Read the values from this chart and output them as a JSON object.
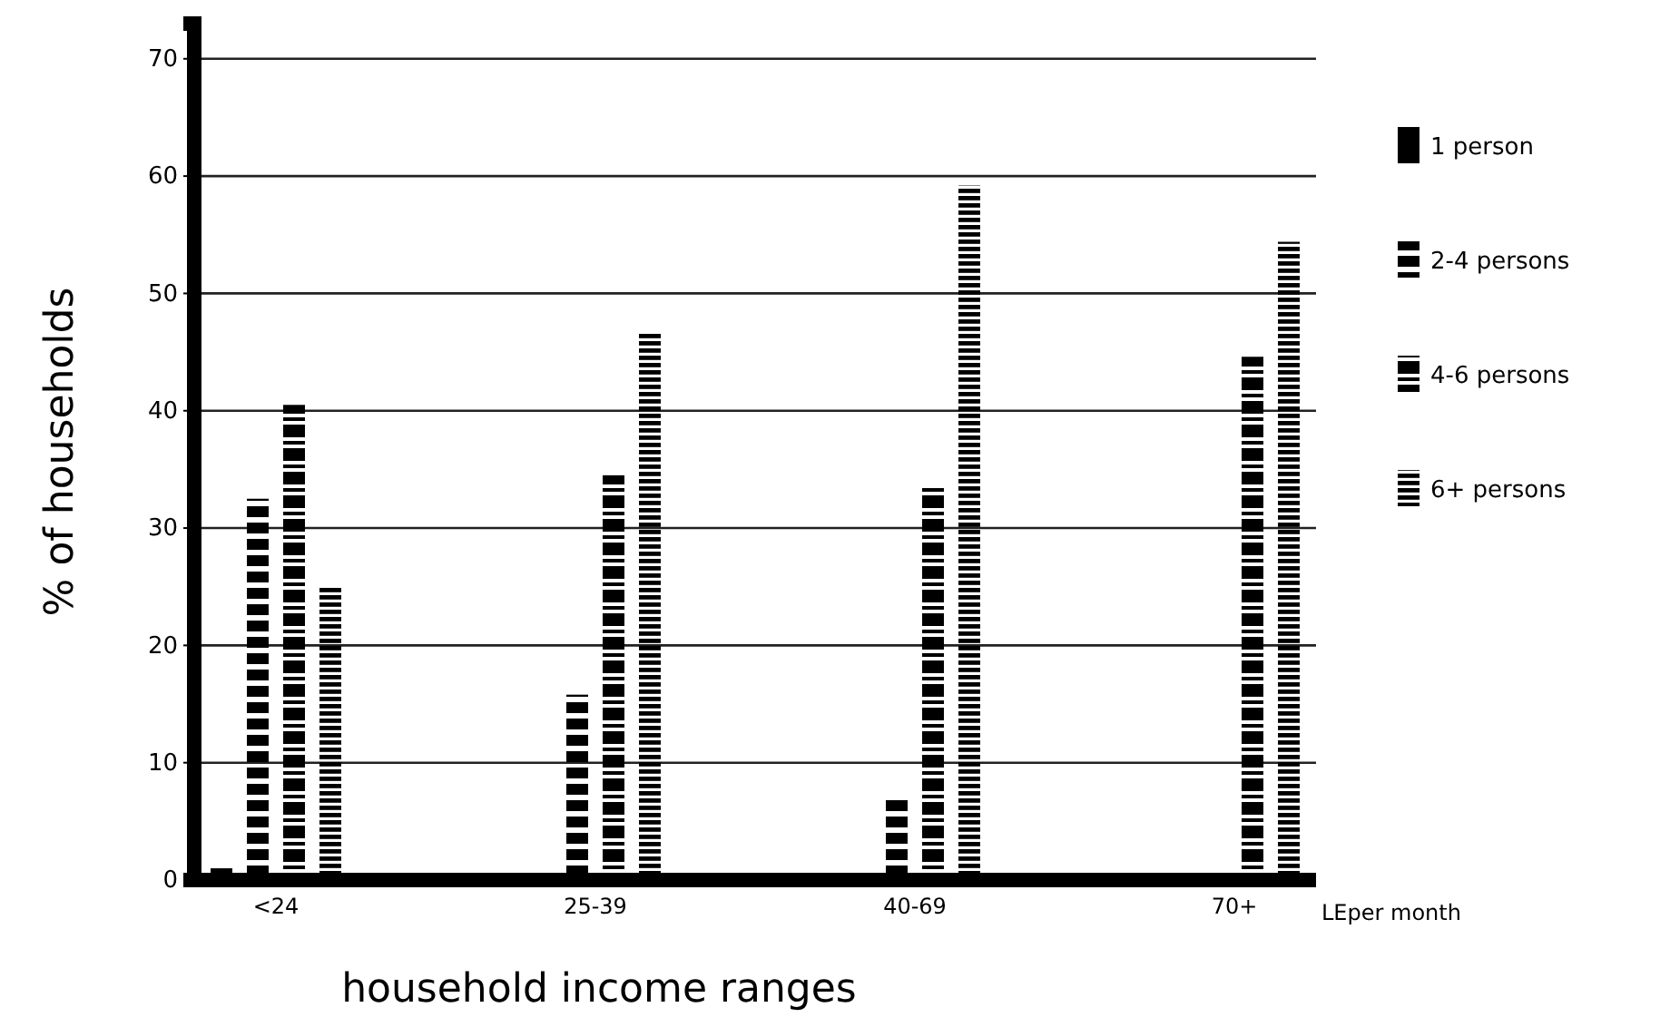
{
  "chart_data": {
    "type": "bar",
    "xlabel": "household income ranges",
    "ylabel": "% of households",
    "categories": [
      "<24",
      "25-39",
      "40-69",
      "70+"
    ],
    "series": [
      {
        "name": "1 person",
        "color": "#000000",
        "values": [
          1,
          null,
          null,
          null
        ]
      },
      {
        "name": "2-4 persons",
        "color": "#000000",
        "values": [
          32.5,
          15.8,
          6.9,
          null
        ]
      },
      {
        "name": "4-6 persons",
        "color": "#000000",
        "values": [
          40.5,
          34.5,
          33.5,
          44.6
        ]
      },
      {
        "name": "6+ persons",
        "color": "#000000",
        "values": [
          25,
          46.6,
          59.2,
          54.4
        ]
      }
    ],
    "ylim": [
      0,
      73
    ],
    "yticks": [
      0,
      10,
      20,
      30,
      40,
      50,
      60,
      70
    ],
    "grid": "y",
    "legend": "right",
    "annotations": [
      "LEper month"
    ]
  }
}
